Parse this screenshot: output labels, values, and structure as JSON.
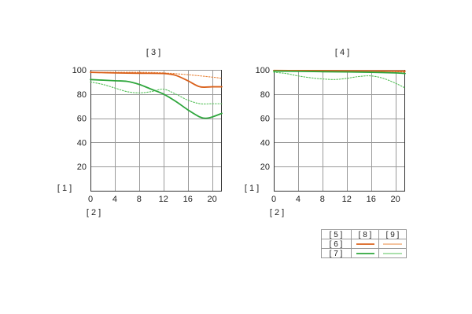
{
  "chart_data": [
    {
      "type": "line",
      "title": "[ 3 ]",
      "ylabel": "[ 1 ]",
      "xlabel": "[ 2 ]",
      "xlim": [
        0,
        21.6
      ],
      "ylim": [
        0,
        100
      ],
      "x_ticks": [
        0,
        4,
        8,
        12,
        16,
        20
      ],
      "y_ticks": [
        20,
        40,
        60,
        80,
        100
      ],
      "grid": true,
      "series": [
        {
          "color": "#e8843a",
          "style": "dotted",
          "points": [
            [
              0,
              98
            ],
            [
              4,
              98
            ],
            [
              8,
              98
            ],
            [
              12,
              97.5
            ],
            [
              16,
              96
            ],
            [
              20,
              94
            ],
            [
              21.6,
              93
            ]
          ]
        },
        {
          "color": "#d9601a",
          "style": "solid",
          "points": [
            [
              0,
              98
            ],
            [
              4,
              97.5
            ],
            [
              8,
              97.2
            ],
            [
              12,
              97
            ],
            [
              14,
              95.5
            ],
            [
              16,
              91
            ],
            [
              18,
              86
            ],
            [
              20,
              86
            ],
            [
              21.6,
              86
            ]
          ]
        },
        {
          "color": "#56c05a",
          "style": "dotted",
          "points": [
            [
              0,
              90
            ],
            [
              2,
              88
            ],
            [
              4,
              85
            ],
            [
              6,
              82
            ],
            [
              8,
              81
            ],
            [
              10,
              82
            ],
            [
              12,
              84
            ],
            [
              14,
              80
            ],
            [
              16,
              75
            ],
            [
              18,
              72
            ],
            [
              20,
              72
            ],
            [
              21.6,
              72
            ]
          ]
        },
        {
          "color": "#2ea63c",
          "style": "solid",
          "points": [
            [
              0,
              92
            ],
            [
              4,
              91
            ],
            [
              6,
              90.5
            ],
            [
              8,
              88
            ],
            [
              10,
              84
            ],
            [
              12,
              80
            ],
            [
              14,
              74
            ],
            [
              16,
              67
            ],
            [
              18,
              61
            ],
            [
              19,
              60
            ],
            [
              20,
              61
            ],
            [
              21.6,
              64
            ]
          ]
        }
      ]
    },
    {
      "type": "line",
      "title": "[ 4 ]",
      "ylabel": "[ 1 ]",
      "xlabel": "[ 2 ]",
      "xlim": [
        0,
        21.6
      ],
      "ylim": [
        0,
        100
      ],
      "x_ticks": [
        0,
        4,
        8,
        12,
        16,
        20
      ],
      "y_ticks": [
        20,
        40,
        60,
        80,
        100
      ],
      "grid": true,
      "series": [
        {
          "color": "#e8843a",
          "style": "dotted",
          "points": [
            [
              0,
              99
            ],
            [
              4,
              99
            ],
            [
              8,
              99
            ],
            [
              12,
              99
            ],
            [
              16,
              99
            ],
            [
              20,
              98.5
            ],
            [
              21.6,
              98
            ]
          ]
        },
        {
          "color": "#d9601a",
          "style": "solid",
          "points": [
            [
              0,
              99.5
            ],
            [
              4,
              99.4
            ],
            [
              8,
              99.3
            ],
            [
              12,
              99.2
            ],
            [
              16,
              99.1
            ],
            [
              20,
              99
            ],
            [
              21.6,
              99
            ]
          ]
        },
        {
          "color": "#56c05a",
          "style": "dotted",
          "points": [
            [
              0,
              98
            ],
            [
              2,
              97
            ],
            [
              4,
              95
            ],
            [
              6,
              93.5
            ],
            [
              8,
              92.5
            ],
            [
              10,
              92
            ],
            [
              12,
              93
            ],
            [
              14,
              94.5
            ],
            [
              16,
              95
            ],
            [
              18,
              93
            ],
            [
              20,
              89
            ],
            [
              21.6,
              85
            ]
          ]
        },
        {
          "color": "#2ea63c",
          "style": "solid",
          "points": [
            [
              0,
              99
            ],
            [
              4,
              98.8
            ],
            [
              8,
              98.5
            ],
            [
              12,
              98.3
            ],
            [
              16,
              98
            ],
            [
              20,
              97.5
            ],
            [
              21.6,
              97
            ]
          ]
        }
      ]
    }
  ],
  "legend": {
    "header": [
      "[ 5 ]",
      "[ 8 ]",
      "[ 9 ]"
    ],
    "rows": [
      {
        "label": "[ 6 ]",
        "solid_color": "#d9601a",
        "dotted_color": "#e8843a"
      },
      {
        "label": "[ 7 ]",
        "solid_color": "#2ea63c",
        "dotted_color": "#56c05a"
      }
    ]
  }
}
